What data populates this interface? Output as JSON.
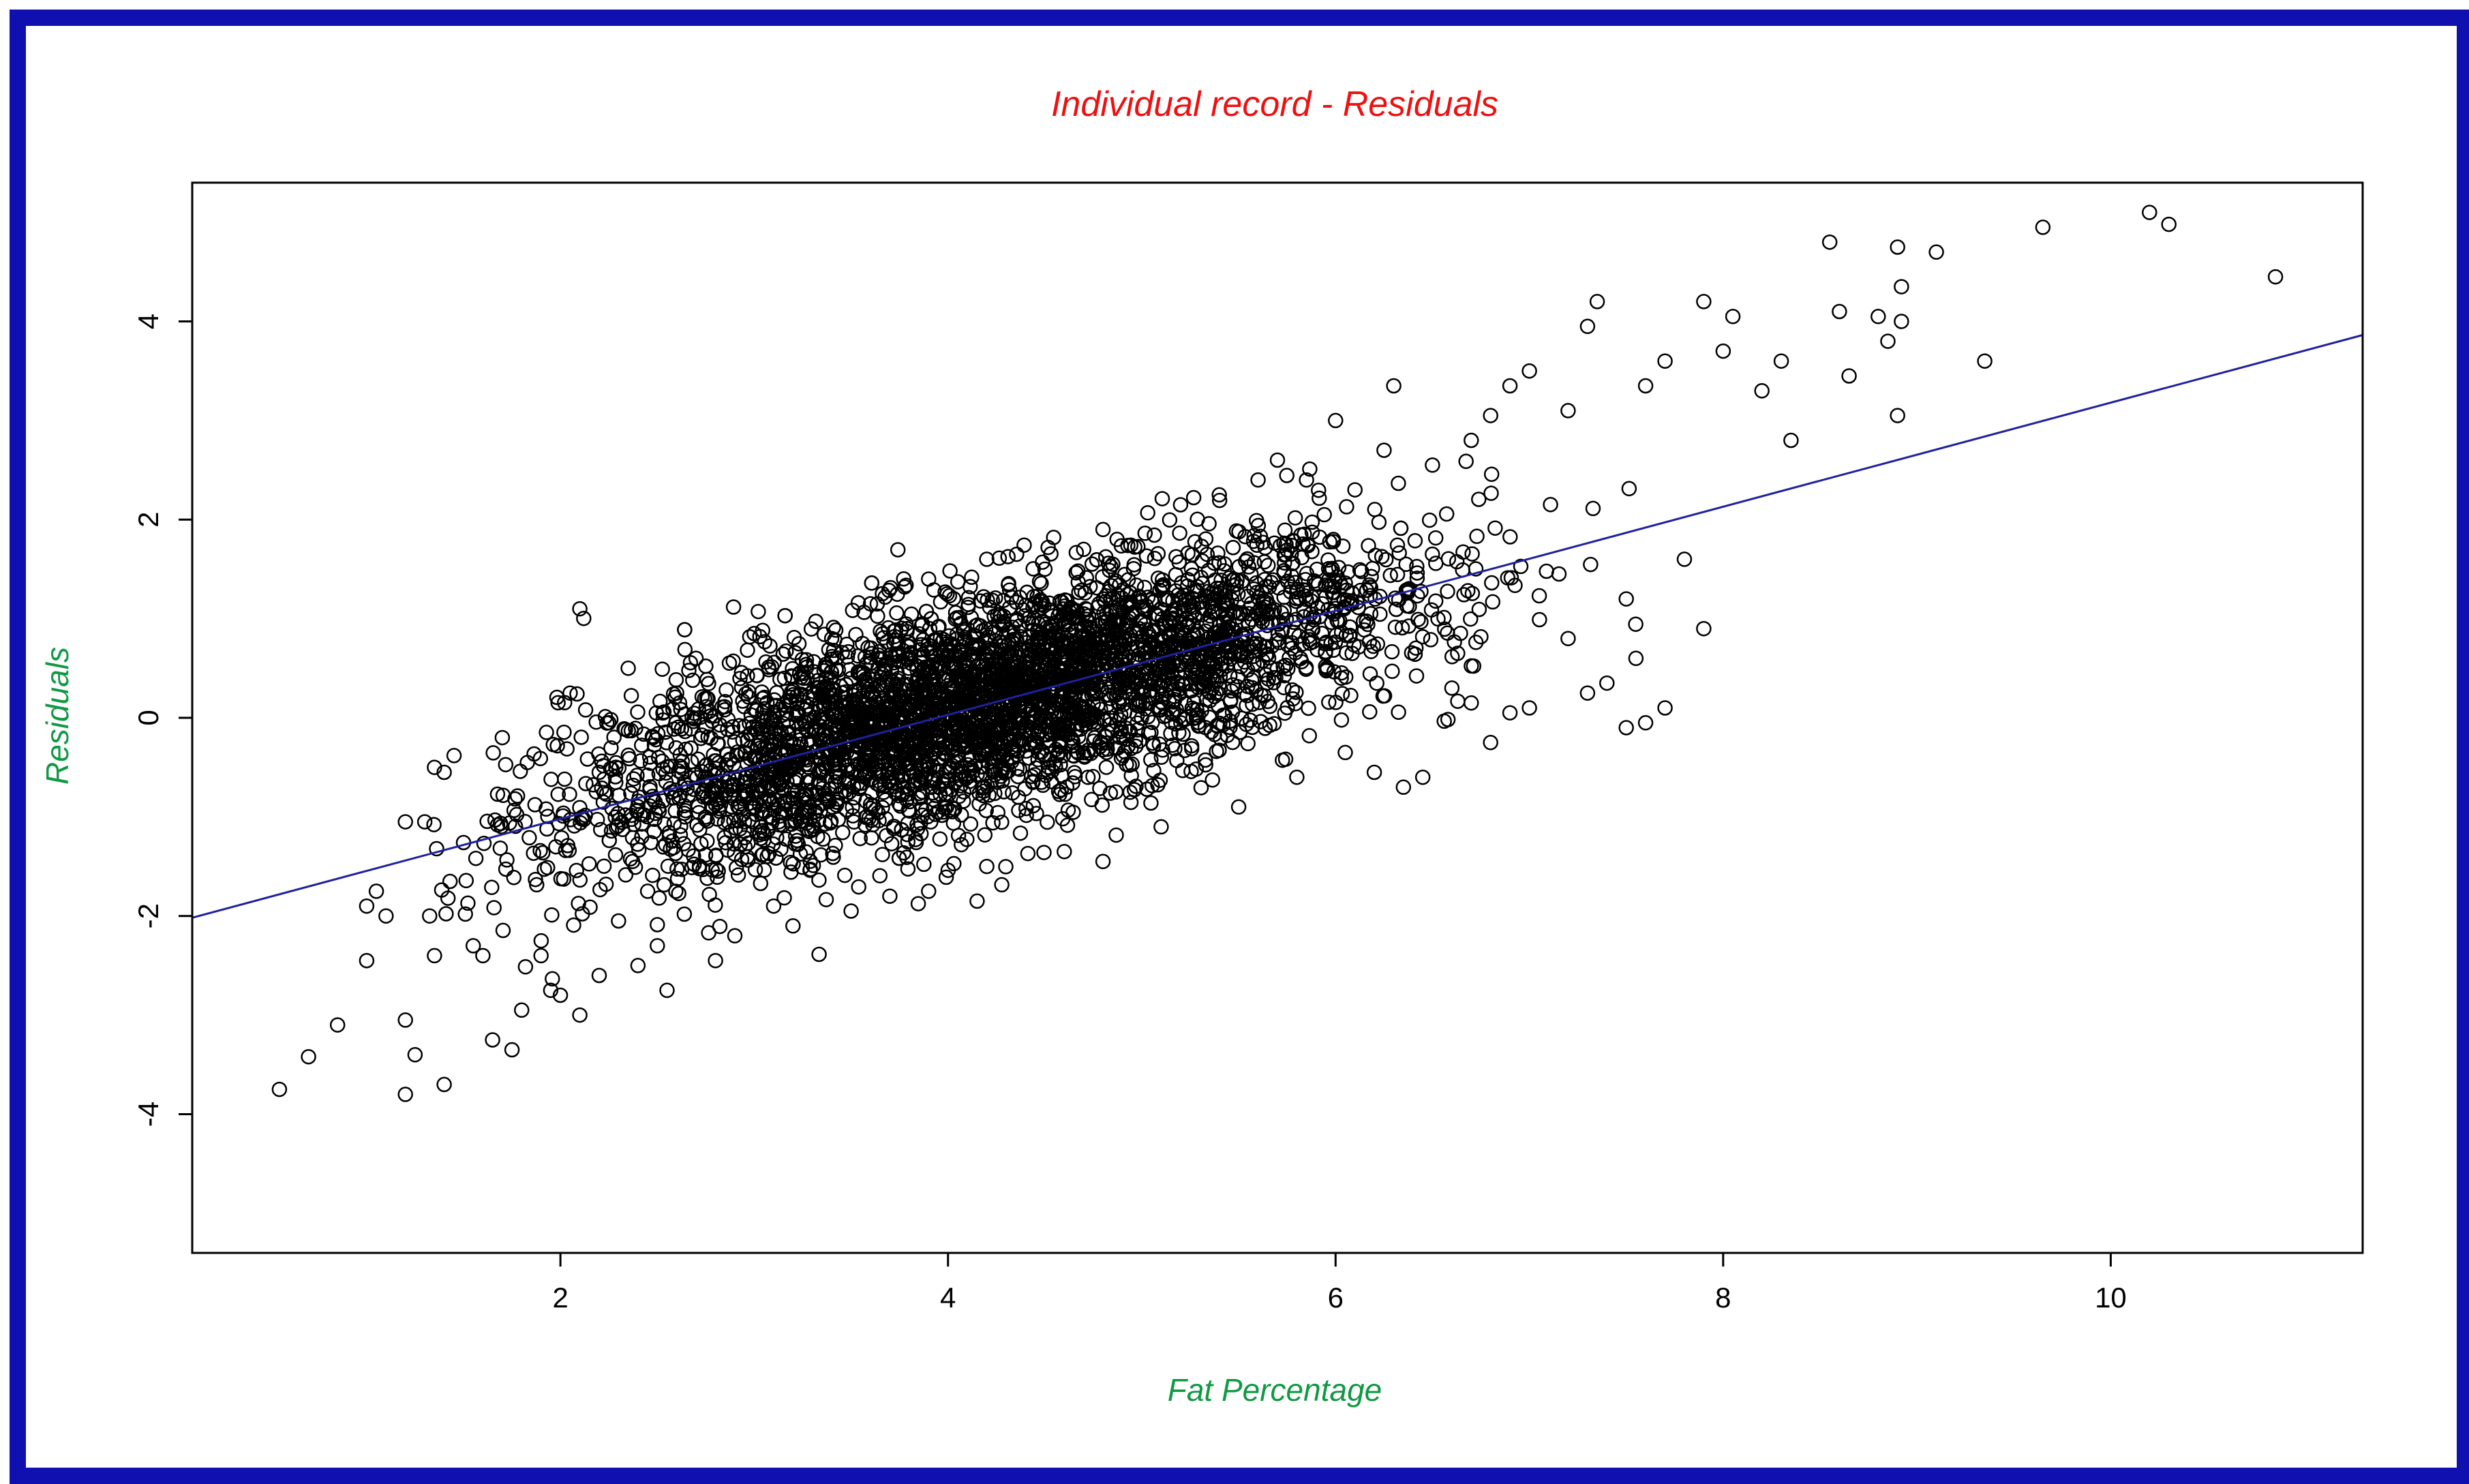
{
  "colors": {
    "frame": "#1010b0",
    "title": "#ee1111",
    "axis_label": "#119944",
    "points": "#000000",
    "fit_line": "#2020a0",
    "background": "#ffffff"
  },
  "chart_data": {
    "type": "scatter",
    "title": "Individual record - Residuals",
    "xlabel": "Fat Percentage",
    "ylabel": "Residuals",
    "xlim": [
      0.1,
      11.3
    ],
    "ylim": [
      -5.4,
      5.4
    ],
    "x_ticks": [
      2,
      4,
      6,
      8,
      10
    ],
    "x_tick_labels": [
      "2",
      "4",
      "6",
      "8",
      "10"
    ],
    "y_ticks": [
      -4,
      -2,
      0,
      2,
      4
    ],
    "y_tick_labels": [
      "-4",
      "-2",
      "0",
      "2",
      "4"
    ],
    "grid": false,
    "fit_line": {
      "intercept": -2.07,
      "slope": 0.525
    },
    "series": [
      {
        "marker": "open-circle",
        "points": [
          [
            0.55,
            -3.75
          ],
          [
            0.7,
            -3.42
          ],
          [
            0.85,
            -3.1
          ],
          [
            1.0,
            -2.45
          ],
          [
            1.2,
            -3.05
          ],
          [
            1.2,
            -3.8
          ],
          [
            1.25,
            -3.4
          ],
          [
            1.4,
            -3.7
          ],
          [
            1.65,
            -3.25
          ],
          [
            1.75,
            -3.35
          ],
          [
            1.8,
            -2.95
          ],
          [
            1.95,
            -2.75
          ],
          [
            2.1,
            -3.0
          ],
          [
            1.0,
            -1.9
          ],
          [
            1.05,
            -1.75
          ],
          [
            1.1,
            -2.0
          ],
          [
            1.2,
            -1.05
          ],
          [
            1.3,
            -1.05
          ],
          [
            1.35,
            -0.5
          ],
          [
            1.4,
            -0.55
          ],
          [
            1.35,
            -2.4
          ],
          [
            1.55,
            -2.3
          ],
          [
            1.6,
            -2.4
          ],
          [
            1.7,
            -0.2
          ],
          [
            2.05,
            0.25
          ],
          [
            2.35,
            0.5
          ],
          [
            2.4,
            -2.5
          ],
          [
            2.55,
            -2.75
          ],
          [
            2.5,
            -2.3
          ],
          [
            2.8,
            -2.45
          ],
          [
            2.9,
            -2.2
          ],
          [
            3.0,
            0.85
          ],
          [
            2.7,
            0.6
          ],
          [
            3.4,
            0.8
          ],
          [
            3.6,
            1.15
          ],
          [
            3.9,
            1.4
          ],
          [
            4.2,
            1.6
          ],
          [
            4.5,
            1.5
          ],
          [
            4.7,
            1.7
          ],
          [
            4.8,
            1.9
          ],
          [
            5.2,
            2.15
          ],
          [
            5.4,
            2.25
          ],
          [
            5.6,
            2.4
          ],
          [
            5.7,
            2.6
          ],
          [
            5.85,
            2.4
          ],
          [
            6.0,
            3.0
          ],
          [
            6.1,
            2.3
          ],
          [
            6.25,
            2.7
          ],
          [
            6.3,
            3.35
          ],
          [
            6.5,
            2.55
          ],
          [
            6.7,
            2.8
          ],
          [
            6.8,
            3.05
          ],
          [
            6.9,
            3.35
          ],
          [
            7.0,
            3.5
          ],
          [
            7.2,
            3.1
          ],
          [
            7.3,
            3.95
          ],
          [
            7.35,
            4.2
          ],
          [
            7.6,
            3.35
          ],
          [
            7.7,
            3.6
          ],
          [
            7.9,
            4.2
          ],
          [
            8.0,
            3.7
          ],
          [
            8.05,
            4.05
          ],
          [
            8.2,
            3.3
          ],
          [
            8.3,
            3.6
          ],
          [
            8.35,
            2.8
          ],
          [
            8.55,
            4.8
          ],
          [
            8.6,
            4.1
          ],
          [
            8.65,
            3.45
          ],
          [
            8.8,
            4.05
          ],
          [
            8.85,
            3.8
          ],
          [
            8.9,
            4.75
          ],
          [
            8.92,
            4.35
          ],
          [
            8.92,
            4.0
          ],
          [
            8.9,
            3.05
          ],
          [
            9.1,
            4.7
          ],
          [
            9.35,
            3.6
          ],
          [
            9.65,
            4.95
          ],
          [
            10.2,
            5.1
          ],
          [
            10.3,
            4.98
          ],
          [
            10.85,
            4.45
          ],
          [
            7.9,
            0.9
          ],
          [
            7.8,
            1.6
          ],
          [
            7.7,
            0.1
          ],
          [
            7.55,
            0.6
          ],
          [
            7.6,
            -0.05
          ],
          [
            7.5,
            -0.1
          ],
          [
            7.5,
            1.2
          ],
          [
            7.3,
            0.25
          ],
          [
            7.4,
            0.35
          ],
          [
            7.2,
            0.8
          ],
          [
            7.0,
            0.1
          ],
          [
            6.9,
            0.05
          ],
          [
            6.7,
            0.15
          ],
          [
            6.8,
            -0.25
          ],
          [
            6.6,
            0.3
          ],
          [
            6.45,
            -0.6
          ],
          [
            6.35,
            -0.7
          ],
          [
            6.2,
            -0.55
          ],
          [
            6.05,
            -0.35
          ],
          [
            5.8,
            -0.6
          ],
          [
            5.5,
            -0.9
          ],
          [
            5.1,
            -1.1
          ],
          [
            4.8,
            -1.45
          ],
          [
            4.6,
            -1.35
          ],
          [
            4.2,
            -1.5
          ],
          [
            4.15,
            -1.85
          ],
          [
            3.9,
            -1.75
          ],
          [
            3.7,
            -1.8
          ],
          [
            3.5,
            -1.95
          ],
          [
            3.2,
            -2.1
          ],
          [
            3.1,
            -1.9
          ],
          [
            2.3,
            -2.05
          ],
          [
            2.2,
            -2.6
          ],
          [
            2.0,
            -2.8
          ],
          [
            1.9,
            -2.4
          ],
          [
            2.1,
            1.1
          ],
          [
            2.2,
            -0.55
          ],
          [
            2.6,
            0.25
          ],
          [
            2.25,
            -0.05
          ],
          [
            2.45,
            -1.75
          ]
        ]
      }
    ]
  }
}
